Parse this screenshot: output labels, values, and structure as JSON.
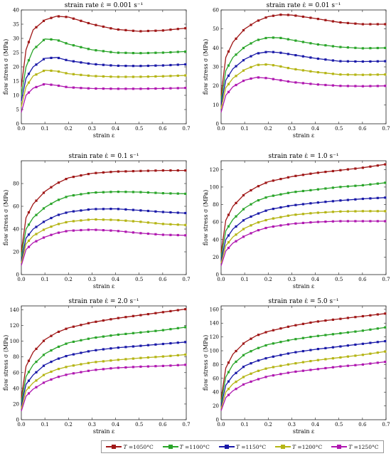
{
  "legend": {
    "prefix": "T",
    "items": [
      {
        "label": "=1050°C",
        "color": "#a01818"
      },
      {
        "label": "=1100°C",
        "color": "#2aa52a"
      },
      {
        "label": "=1150°C",
        "color": "#1a1aa8"
      },
      {
        "label": "=1200°C",
        "color": "#b5b515"
      },
      {
        "label": "=1250°C",
        "color": "#b018b0"
      }
    ]
  },
  "chart_data": [
    {
      "type": "line",
      "title": "strain rate ε̇ = 0.001 s⁻¹",
      "xlabel": "strain ε",
      "ylabel": "flow stress σ (MPa)",
      "xlim": [
        0,
        0.7
      ],
      "ylim": [
        0,
        40
      ],
      "xticks": [
        "0.0",
        "0.1",
        "0.2",
        "0.3",
        "0.4",
        "0.5",
        "0.6",
        "0.7"
      ],
      "yticks": [
        "0",
        "5",
        "10",
        "15",
        "20",
        "25",
        "30",
        "35",
        "40"
      ],
      "x": [
        0,
        0.02,
        0.05,
        0.1,
        0.15,
        0.2,
        0.3,
        0.4,
        0.5,
        0.6,
        0.7
      ],
      "series": [
        {
          "values": [
            13,
            26,
            33,
            36.5,
            37.8,
            37.5,
            35,
            33.2,
            32.5,
            32.8,
            33.6
          ]
        },
        {
          "values": [
            10,
            20,
            26,
            29.8,
            29.5,
            28,
            26,
            25,
            24.8,
            25,
            25.4
          ]
        },
        {
          "values": [
            8,
            16,
            20,
            23,
            23.3,
            22.2,
            21,
            20.4,
            20.3,
            20.5,
            20.9
          ]
        },
        {
          "values": [
            6,
            13,
            16.8,
            18.8,
            18.5,
            17.6,
            16.8,
            16.5,
            16.5,
            16.7,
            17
          ]
        },
        {
          "values": [
            4,
            10,
            12.5,
            14,
            13.5,
            12.8,
            12.4,
            12.3,
            12.3,
            12.4,
            12.6
          ]
        }
      ]
    },
    {
      "type": "line",
      "title": "strain rate ε̇ = 0.01 s⁻¹",
      "xlabel": "strain ε",
      "ylabel": "flow stress σ (MPa)",
      "xlim": [
        0,
        0.7
      ],
      "ylim": [
        0,
        60
      ],
      "xticks": [
        "0.0",
        "0.1",
        "0.2",
        "0.3",
        "0.4",
        "0.5",
        "0.6",
        "0.7"
      ],
      "yticks": [
        "0",
        "10",
        "20",
        "30",
        "40",
        "50",
        "60"
      ],
      "x": [
        0,
        0.02,
        0.05,
        0.1,
        0.15,
        0.2,
        0.25,
        0.3,
        0.4,
        0.5,
        0.6,
        0.7
      ],
      "series": [
        {
          "values": [
            15,
            35,
            43,
            50,
            54,
            56.5,
            57.5,
            57.3,
            55.5,
            53.5,
            52.5,
            52.5
          ]
        },
        {
          "values": [
            12,
            28,
            35,
            40.5,
            44,
            45.5,
            45.3,
            44.2,
            42,
            40.5,
            39.8,
            40
          ]
        },
        {
          "values": [
            10,
            23,
            29,
            34,
            37,
            38,
            37.5,
            36.5,
            34.5,
            33,
            32.8,
            33
          ]
        },
        {
          "values": [
            8,
            19,
            24,
            28.5,
            31,
            31.3,
            30.3,
            29,
            27.3,
            26,
            25.8,
            26
          ]
        },
        {
          "values": [
            6,
            15,
            19.5,
            23,
            24.5,
            24,
            23,
            22,
            20.8,
            20,
            19.8,
            20
          ]
        }
      ]
    },
    {
      "type": "line",
      "title": "strain rate ε̇ = 0.1 s⁻¹",
      "xlabel": "strain ε",
      "ylabel": "flow stress σ (MPa)",
      "xlim": [
        0,
        0.7
      ],
      "ylim": [
        0,
        100
      ],
      "xticks": [
        "0.0",
        "0.1",
        "0.2",
        "0.3",
        "0.4",
        "0.5",
        "0.6",
        "0.7"
      ],
      "yticks": [
        "0",
        "20",
        "40",
        "60",
        "80"
      ],
      "x": [
        0,
        0.02,
        0.05,
        0.1,
        0.15,
        0.2,
        0.3,
        0.4,
        0.5,
        0.6,
        0.7
      ],
      "series": [
        {
          "values": [
            20,
            50,
            62,
            73,
            80,
            85,
            89,
            90.5,
            91,
            91.5,
            91.5
          ]
        },
        {
          "values": [
            16,
            40,
            50,
            59,
            65,
            69,
            72,
            72.8,
            72.5,
            71.5,
            71
          ]
        },
        {
          "values": [
            12,
            32,
            40,
            47,
            52,
            55,
            57.5,
            57.8,
            56.5,
            55,
            54
          ]
        },
        {
          "values": [
            10,
            27,
            34,
            40,
            44,
            46.5,
            48.5,
            48,
            46.5,
            44.5,
            43.5
          ]
        },
        {
          "values": [
            8,
            22,
            28,
            33,
            36.5,
            38.5,
            39.5,
            38.5,
            36.5,
            35,
            34.5
          ]
        }
      ]
    },
    {
      "type": "line",
      "title": "strain rate ε̇ = 1.0 s⁻¹",
      "xlabel": "strain ε",
      "ylabel": "flow stress σ (MPa)",
      "xlim": [
        0,
        0.7
      ],
      "ylim": [
        0,
        130
      ],
      "xticks": [
        "0.0",
        "0.1",
        "0.2",
        "0.3",
        "0.4",
        "0.5",
        "0.6",
        "0.7"
      ],
      "yticks": [
        "0",
        "20",
        "40",
        "60",
        "80",
        "100",
        "120"
      ],
      "x": [
        0,
        0.02,
        0.05,
        0.1,
        0.15,
        0.2,
        0.3,
        0.4,
        0.5,
        0.6,
        0.7
      ],
      "series": [
        {
          "values": [
            25,
            62,
            78,
            92,
            100,
            106,
            112,
            116,
            119,
            122,
            126
          ]
        },
        {
          "values": [
            20,
            50,
            63,
            76,
            84,
            89,
            94,
            97,
            100,
            102,
            105
          ]
        },
        {
          "values": [
            16,
            40,
            52,
            63,
            69,
            74,
            79,
            82,
            84.5,
            86.5,
            88
          ]
        },
        {
          "values": [
            13,
            33,
            43,
            53,
            59,
            63,
            68,
            70.5,
            72,
            72.5,
            72.5
          ]
        },
        {
          "values": [
            10,
            27,
            36,
            44,
            50,
            54,
            58,
            60,
            61,
            61,
            61
          ]
        }
      ]
    },
    {
      "type": "line",
      "title": "strain rate ε̇ = 2.0 s⁻¹",
      "xlabel": "strain ε",
      "ylabel": "flow stress σ (MPa)",
      "xlim": [
        0,
        0.7
      ],
      "ylim": [
        0,
        145
      ],
      "xticks": [
        "0.0",
        "0.1",
        "0.2",
        "0.3",
        "0.4",
        "0.5",
        "0.6",
        "0.7"
      ],
      "yticks": [
        "0",
        "20",
        "40",
        "60",
        "80",
        "100",
        "120",
        "140"
      ],
      "x": [
        0,
        0.02,
        0.05,
        0.1,
        0.15,
        0.2,
        0.3,
        0.4,
        0.5,
        0.6,
        0.7
      ],
      "series": [
        {
          "values": [
            28,
            68,
            86,
            102,
            111,
            117,
            124,
            129,
            133,
            137,
            141
          ]
        },
        {
          "values": [
            22,
            55,
            70,
            84,
            92,
            98,
            104,
            108,
            111,
            114,
            118
          ]
        },
        {
          "values": [
            18,
            45,
            57,
            70,
            77,
            82,
            88,
            91.5,
            94,
            96.5,
            99
          ]
        },
        {
          "values": [
            14,
            37,
            47,
            58,
            64,
            68,
            73,
            76,
            78.5,
            80.5,
            83
          ]
        },
        {
          "values": [
            11,
            30,
            39,
            48,
            54,
            58,
            63,
            66,
            67.5,
            68.5,
            70
          ]
        }
      ]
    },
    {
      "type": "line",
      "title": "strain rate ε̇ = 5.0 s⁻¹",
      "xlabel": "strain ε",
      "ylabel": "flow stress σ (MPa)",
      "xlim": [
        0,
        0.7
      ],
      "ylim": [
        0,
        165
      ],
      "xticks": [
        "0.0",
        "0.1",
        "0.2",
        "0.3",
        "0.4",
        "0.5",
        "0.6",
        "0.7"
      ],
      "yticks": [
        "0",
        "20",
        "40",
        "60",
        "80",
        "100",
        "120",
        "140",
        "160"
      ],
      "x": [
        0,
        0.02,
        0.05,
        0.1,
        0.15,
        0.2,
        0.3,
        0.4,
        0.5,
        0.6,
        0.7
      ],
      "series": [
        {
          "values": [
            30,
            75,
            95,
            112,
            122,
            128,
            136,
            142,
            146,
            150,
            154
          ]
        },
        {
          "values": [
            25,
            62,
            80,
            95,
            103,
            109,
            116,
            121,
            125,
            129,
            134
          ]
        },
        {
          "values": [
            20,
            50,
            64,
            78,
            85,
            90,
            97,
            102,
            106,
            110,
            114
          ]
        },
        {
          "values": [
            16,
            40,
            52,
            63,
            70,
            75,
            81,
            86,
            90,
            94,
            99
          ]
        },
        {
          "values": [
            13,
            32,
            42,
            52,
            58,
            63,
            69,
            73,
            77,
            80,
            84
          ]
        }
      ]
    }
  ]
}
